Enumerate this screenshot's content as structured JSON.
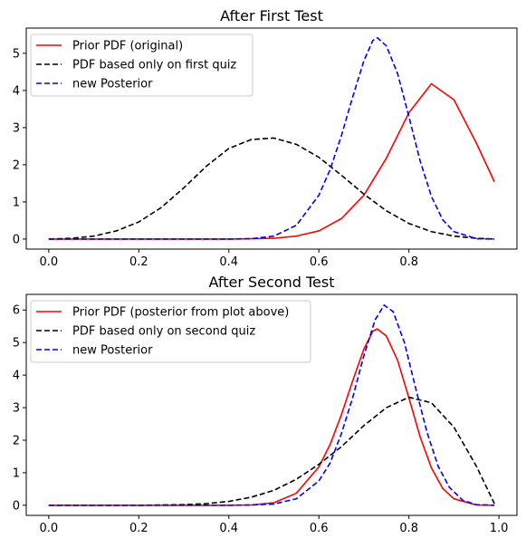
{
  "chart_data": [
    {
      "type": "line",
      "title": "After First Test",
      "xlabel": "",
      "ylabel": "",
      "xlim": [
        -0.05,
        1.04
      ],
      "ylim": [
        -0.27,
        5.68
      ],
      "xticks": [
        0.0,
        0.2,
        0.4,
        0.6,
        0.8
      ],
      "xtick_labels": [
        "0.0",
        "0.2",
        "0.4",
        "0.6",
        "0.8"
      ],
      "yticks": [
        0,
        1,
        2,
        3,
        4,
        5
      ],
      "ytick_labels": [
        "0",
        "1",
        "2",
        "3",
        "4",
        "5"
      ],
      "grid": false,
      "legend_position": "upper-left",
      "series": [
        {
          "name": "Prior PDF (original)",
          "color": "#ff0000",
          "dash": "solid",
          "x": [
            0.0,
            0.05,
            0.1,
            0.15,
            0.2,
            0.25,
            0.3,
            0.35,
            0.4,
            0.45,
            0.5,
            0.55,
            0.6,
            0.65,
            0.7,
            0.75,
            0.8,
            0.85,
            0.9,
            0.95,
            0.99
          ],
          "y": [
            0.0,
            0.0,
            0.0,
            0.0,
            0.0,
            0.0,
            0.0,
            0.0,
            0.0,
            0.01,
            0.02,
            0.08,
            0.22,
            0.55,
            1.18,
            2.18,
            3.4,
            4.18,
            3.75,
            2.58,
            1.54
          ]
        },
        {
          "name": "PDF based only on first quiz",
          "color": "#000000",
          "dash": "dashed",
          "x": [
            0.0,
            0.05,
            0.1,
            0.15,
            0.2,
            0.25,
            0.3,
            0.35,
            0.4,
            0.45,
            0.5,
            0.55,
            0.6,
            0.65,
            0.7,
            0.75,
            0.8,
            0.85,
            0.9,
            0.95,
            0.99
          ],
          "y": [
            0.0,
            0.02,
            0.08,
            0.22,
            0.46,
            0.85,
            1.38,
            1.96,
            2.44,
            2.68,
            2.72,
            2.55,
            2.2,
            1.72,
            1.21,
            0.76,
            0.42,
            0.2,
            0.08,
            0.02,
            0.0
          ],
          "x2": [],
          "y2": []
        },
        {
          "name": "new Posterior",
          "color": "#0000ff",
          "dash": "dashed",
          "x": [
            0.0,
            0.1,
            0.2,
            0.3,
            0.4,
            0.45,
            0.5,
            0.55,
            0.6,
            0.625,
            0.65,
            0.675,
            0.7,
            0.72,
            0.73,
            0.75,
            0.775,
            0.8,
            0.825,
            0.85,
            0.875,
            0.9,
            0.95,
            0.99
          ],
          "y": [
            0.0,
            0.0,
            0.0,
            0.0,
            0.0,
            0.01,
            0.08,
            0.37,
            1.18,
            1.87,
            2.78,
            3.82,
            4.8,
            5.35,
            5.42,
            5.2,
            4.45,
            3.3,
            2.1,
            1.15,
            0.52,
            0.2,
            0.01,
            0.0
          ]
        }
      ]
    },
    {
      "type": "line",
      "title": "After Second Test",
      "xlabel": "",
      "ylabel": "",
      "xlim": [
        -0.05,
        1.04
      ],
      "ylim": [
        -0.31,
        6.48
      ],
      "xticks": [
        0.0,
        0.2,
        0.4,
        0.6,
        0.8,
        1.0
      ],
      "xtick_labels": [
        "0.0",
        "0.2",
        "0.4",
        "0.6",
        "0.8",
        "1.0"
      ],
      "yticks": [
        0,
        1,
        2,
        3,
        4,
        5,
        6
      ],
      "ytick_labels": [
        "0",
        "1",
        "2",
        "3",
        "4",
        "5",
        "6"
      ],
      "grid": false,
      "legend_position": "upper-left",
      "series": [
        {
          "name": "Prior PDF (posterior from plot above)",
          "color": "#ff0000",
          "dash": "solid",
          "x": [
            0.0,
            0.1,
            0.2,
            0.3,
            0.4,
            0.45,
            0.5,
            0.55,
            0.6,
            0.625,
            0.65,
            0.675,
            0.7,
            0.72,
            0.73,
            0.75,
            0.775,
            0.8,
            0.825,
            0.85,
            0.875,
            0.9,
            0.95,
            0.99
          ],
          "y": [
            0.0,
            0.0,
            0.0,
            0.0,
            0.0,
            0.01,
            0.08,
            0.37,
            1.18,
            1.87,
            2.78,
            3.82,
            4.8,
            5.35,
            5.42,
            5.2,
            4.45,
            3.3,
            2.1,
            1.15,
            0.52,
            0.2,
            0.01,
            0.0
          ]
        },
        {
          "name": "PDF based only on second quiz",
          "color": "#000000",
          "dash": "dashed",
          "x": [
            0.0,
            0.1,
            0.2,
            0.3,
            0.35,
            0.4,
            0.45,
            0.5,
            0.55,
            0.6,
            0.65,
            0.7,
            0.75,
            0.8,
            0.85,
            0.9,
            0.95,
            0.99
          ],
          "y": [
            0.0,
            0.0,
            0.0,
            0.02,
            0.05,
            0.12,
            0.25,
            0.46,
            0.8,
            1.26,
            1.8,
            2.45,
            3.0,
            3.32,
            3.15,
            2.4,
            1.2,
            0.05
          ]
        },
        {
          "name": "new Posterior",
          "color": "#0000ff",
          "dash": "dashed",
          "x": [
            0.0,
            0.2,
            0.4,
            0.45,
            0.5,
            0.55,
            0.6,
            0.625,
            0.65,
            0.675,
            0.7,
            0.725,
            0.745,
            0.765,
            0.79,
            0.815,
            0.84,
            0.865,
            0.89,
            0.92,
            0.95,
            0.99
          ],
          "y": [
            0.0,
            0.0,
            0.0,
            0.01,
            0.04,
            0.2,
            0.75,
            1.3,
            2.2,
            3.3,
            4.6,
            5.7,
            6.15,
            5.95,
            5.0,
            3.6,
            2.25,
            1.2,
            0.55,
            0.15,
            0.02,
            0.0
          ]
        }
      ]
    }
  ]
}
